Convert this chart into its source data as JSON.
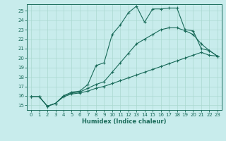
{
  "xlabel": "Humidex (Indice chaleur)",
  "bg_color": "#c8ecec",
  "line_color": "#1a6b5a",
  "grid_color": "#aad8d0",
  "xlim": [
    -0.5,
    23.5
  ],
  "ylim": [
    14.5,
    25.7
  ],
  "xticks": [
    0,
    1,
    2,
    3,
    4,
    5,
    6,
    7,
    8,
    9,
    10,
    11,
    12,
    13,
    14,
    15,
    16,
    17,
    18,
    19,
    20,
    21,
    22,
    23
  ],
  "yticks": [
    15,
    16,
    17,
    18,
    19,
    20,
    21,
    22,
    23,
    24,
    25
  ],
  "line1_x": [
    0,
    1,
    2,
    3,
    4,
    5,
    6,
    7,
    8,
    9,
    10,
    11,
    12,
    13,
    14,
    15,
    16,
    17,
    18,
    19,
    20,
    21,
    22,
    23
  ],
  "line1_y": [
    15.9,
    15.9,
    14.9,
    15.2,
    15.9,
    16.2,
    16.3,
    16.5,
    16.8,
    17.0,
    17.3,
    17.6,
    17.9,
    18.2,
    18.5,
    18.8,
    19.1,
    19.4,
    19.7,
    20.0,
    20.3,
    20.6,
    20.3,
    20.2
  ],
  "line2_x": [
    0,
    1,
    2,
    3,
    4,
    5,
    6,
    7,
    8,
    9,
    10,
    11,
    12,
    13,
    14,
    15,
    16,
    17,
    18,
    19,
    20,
    21,
    22,
    23
  ],
  "line2_y": [
    15.9,
    15.9,
    14.9,
    15.2,
    16.0,
    16.3,
    16.4,
    16.8,
    17.2,
    17.5,
    18.5,
    19.5,
    20.5,
    21.5,
    22.0,
    22.5,
    23.0,
    23.2,
    23.2,
    22.9,
    22.5,
    21.5,
    20.8,
    20.2
  ],
  "line3_x": [
    0,
    1,
    2,
    3,
    4,
    5,
    6,
    7,
    8,
    9,
    10,
    11,
    12,
    13,
    14,
    15,
    16,
    17,
    18,
    19,
    20,
    21,
    22,
    23
  ],
  "line3_y": [
    15.9,
    15.9,
    14.9,
    15.2,
    16.0,
    16.4,
    16.5,
    17.2,
    19.2,
    19.5,
    22.5,
    23.5,
    24.8,
    25.5,
    23.8,
    25.2,
    25.2,
    25.3,
    25.3,
    23.0,
    22.9,
    21.0,
    20.8,
    20.2
  ]
}
